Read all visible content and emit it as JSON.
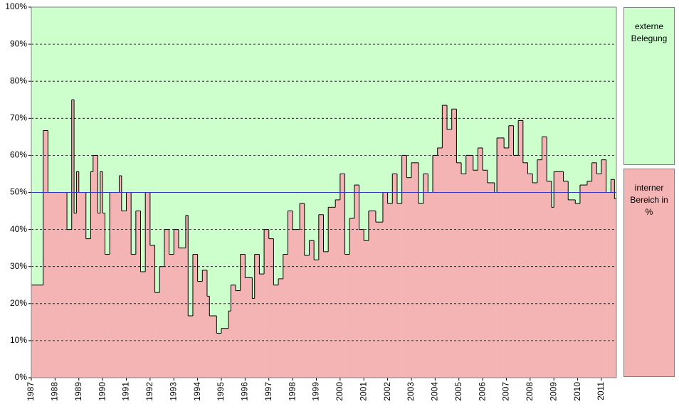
{
  "chart_data": {
    "type": "step-area",
    "series": [
      {
        "name": "interner Bereich in %",
        "color": "#f4b4b4",
        "x": [
          1987.0,
          1987.5,
          1987.7,
          1988.5,
          1988.7,
          1988.8,
          1988.9,
          1989.0,
          1989.3,
          1989.5,
          1989.6,
          1989.8,
          1989.9,
          1990.0,
          1990.1,
          1990.3,
          1990.7,
          1990.8,
          1991.0,
          1991.2,
          1991.4,
          1991.6,
          1991.8,
          1992.0,
          1992.2,
          1992.4,
          1992.6,
          1992.8,
          1993.0,
          1993.2,
          1993.5,
          1993.6,
          1993.8,
          1994.0,
          1994.2,
          1994.4,
          1994.5,
          1994.8,
          1995.0,
          1995.3,
          1995.4,
          1995.6,
          1995.8,
          1996.0,
          1996.3,
          1996.4,
          1996.6,
          1996.8,
          1997.0,
          1997.2,
          1997.4,
          1997.6,
          1997.8,
          1998.0,
          1998.3,
          1998.5,
          1998.7,
          1998.9,
          1999.1,
          1999.3,
          1999.5,
          1999.8,
          2000.0,
          2000.2,
          2000.4,
          2000.6,
          2000.8,
          2001.0,
          2001.2,
          2001.5,
          2001.8,
          2002.0,
          2002.2,
          2002.4,
          2002.6,
          2002.8,
          2003.0,
          2003.3,
          2003.5,
          2003.7,
          2003.9,
          2004.1,
          2004.3,
          2004.5,
          2004.7,
          2004.9,
          2005.1,
          2005.3,
          2005.6,
          2005.8,
          2006.0,
          2006.2,
          2006.5,
          2006.6,
          2006.9,
          2007.1,
          2007.3,
          2007.5,
          2007.7,
          2007.9,
          2008.1,
          2008.3,
          2008.5,
          2008.7,
          2008.9,
          2009.0,
          2009.4,
          2009.6,
          2009.9,
          2010.1,
          2010.4,
          2010.6,
          2010.8,
          2011.0,
          2011.2,
          2011.4,
          2011.55
        ],
        "values": [
          25,
          66.7,
          50,
          40,
          75,
          44.4,
          55.6,
          50,
          37.5,
          55.6,
          60,
          44.4,
          55.6,
          44.4,
          33.3,
          50,
          54.5,
          45,
          50,
          33.3,
          45,
          28.6,
          50,
          35.7,
          23,
          30,
          40,
          33.3,
          40,
          35,
          43.8,
          16.7,
          33.3,
          26,
          29,
          22,
          16.7,
          12,
          13.3,
          18,
          25,
          23.5,
          33.3,
          27,
          21.4,
          33.3,
          28,
          40,
          37.5,
          25,
          26.7,
          33.3,
          45,
          40,
          47,
          33,
          37,
          31.8,
          44,
          34,
          46,
          48,
          55,
          33.3,
          43,
          52,
          40,
          37,
          45,
          42,
          50,
          47,
          55,
          47,
          60,
          54,
          58,
          47,
          55,
          50,
          60,
          62,
          73.5,
          67,
          72.5,
          58,
          55,
          60,
          56,
          62,
          56,
          52.6,
          50,
          64.7,
          62,
          68,
          60,
          69.4,
          58,
          55,
          52.6,
          58.8,
          65,
          53,
          46,
          55.6,
          53,
          48,
          47,
          52,
          53,
          58,
          55,
          58.8,
          50,
          53.5,
          48.3
        ]
      }
    ],
    "background": {
      "label": "externe Belegung",
      "color": "#ccffcc"
    },
    "reference_line": {
      "value": 50,
      "color": "#3333cc"
    },
    "xlim": [
      1987,
      2011.63
    ],
    "xticks": [
      1987,
      1988,
      1989,
      1990,
      1991,
      1992,
      1993,
      1994,
      1995,
      1996,
      1997,
      1998,
      1999,
      2000,
      2001,
      2002,
      2003,
      2004,
      2005,
      2006,
      2007,
      2008,
      2009,
      2010,
      2011
    ],
    "ylim": [
      0,
      100
    ],
    "yticks": [
      {
        "value": 0,
        "label": "0%"
      },
      {
        "value": 10,
        "label": "10%"
      },
      {
        "value": 20,
        "label": "20%"
      },
      {
        "value": 30,
        "label": "30%"
      },
      {
        "value": 40,
        "label": "40%"
      },
      {
        "value": 50,
        "label": "50%"
      },
      {
        "value": 60,
        "label": "60%"
      },
      {
        "value": 70,
        "label": "70%"
      },
      {
        "value": 80,
        "label": "80%"
      },
      {
        "value": 90,
        "label": "90%"
      },
      {
        "value": 100,
        "label": "100%"
      }
    ],
    "grid": true
  }
}
